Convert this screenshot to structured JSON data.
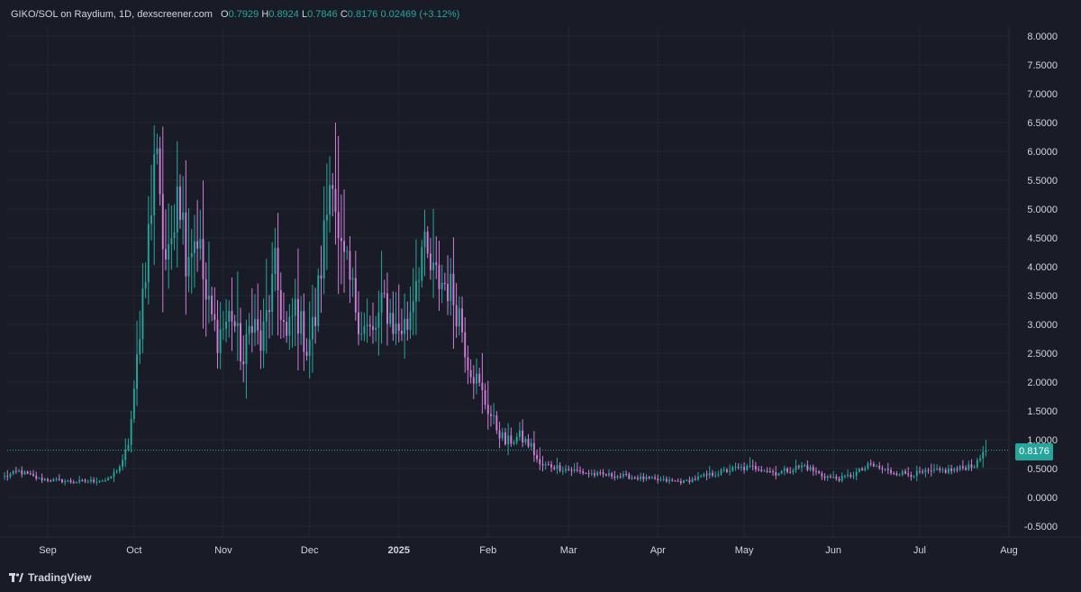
{
  "header": {
    "symbol": "GIKO/SOL on Raydium, 1D, dexscreener.com",
    "o_label": "O",
    "o_value": "0.7929",
    "h_label": "H",
    "h_value": "0.8924",
    "l_label": "L",
    "l_value": "0.7846",
    "c_label": "C",
    "c_value": "0.8176",
    "change": "0.02469 (+3.12%)"
  },
  "brand": {
    "name": "TradingView"
  },
  "colors": {
    "up": "#26a69a",
    "down": "#d07cd8",
    "background": "#191c27",
    "grid": "#242733"
  },
  "chart_data": {
    "type": "candlestick",
    "ylim": [
      -0.75,
      8.25
    ],
    "y_ticks": [
      "8.0000",
      "7.5000",
      "7.0000",
      "6.5000",
      "6.0000",
      "5.5000",
      "5.0000",
      "4.5000",
      "4.0000",
      "3.5000",
      "3.0000",
      "2.5000",
      "2.0000",
      "1.5000",
      "1.0000",
      "0.5000",
      "0.0000",
      "-0.5000"
    ],
    "y_tick_values": [
      8,
      7.5,
      7,
      6.5,
      6,
      5.5,
      5,
      4.5,
      4,
      3.5,
      3,
      2.5,
      2,
      1.5,
      1,
      0.5,
      0,
      -0.5
    ],
    "x_ticks": [
      {
        "label": "Sep",
        "date": "2024-09-01",
        "bold": false
      },
      {
        "label": "Oct",
        "date": "2024-10-01",
        "bold": false
      },
      {
        "label": "Nov",
        "date": "2024-11-01",
        "bold": false
      },
      {
        "label": "Dec",
        "date": "2024-12-01",
        "bold": false
      },
      {
        "label": "2025",
        "date": "2025-01-01",
        "bold": true
      },
      {
        "label": "Feb",
        "date": "2025-02-01",
        "bold": false
      },
      {
        "label": "Mar",
        "date": "2025-03-01",
        "bold": false
      },
      {
        "label": "Apr",
        "date": "2025-04-01",
        "bold": false
      },
      {
        "label": "May",
        "date": "2025-05-01",
        "bold": false
      },
      {
        "label": "Jun",
        "date": "2025-06-01",
        "bold": false
      },
      {
        "label": "Jul",
        "date": "2025-07-01",
        "bold": false
      },
      {
        "label": "Aug",
        "date": "2025-08-01",
        "bold": false
      }
    ],
    "start_date": "2024-08-17",
    "last_price": "0.8176",
    "last_value": 0.8176,
    "close_path": [
      [
        "2024-08-17",
        0.36
      ],
      [
        "2024-08-22",
        0.45
      ],
      [
        "2024-08-29",
        0.32
      ],
      [
        "2024-09-10",
        0.27
      ],
      [
        "2024-09-22",
        0.3
      ],
      [
        "2024-09-27",
        0.6
      ],
      [
        "2024-09-29",
        0.95
      ],
      [
        "2024-10-01",
        1.75
      ],
      [
        "2024-10-03",
        3.0
      ],
      [
        "2024-10-05",
        4.1
      ],
      [
        "2024-10-07",
        5.0
      ],
      [
        "2024-10-09",
        6.4
      ],
      [
        "2024-10-11",
        4.4
      ],
      [
        "2024-10-13",
        4.0
      ],
      [
        "2024-10-16",
        5.7
      ],
      [
        "2024-10-19",
        4.3
      ],
      [
        "2024-10-23",
        4.6
      ],
      [
        "2024-10-26",
        3.4
      ],
      [
        "2024-10-30",
        2.8
      ],
      [
        "2024-11-04",
        3.2
      ],
      [
        "2024-11-08",
        2.3
      ],
      [
        "2024-11-11",
        3.2
      ],
      [
        "2024-11-14",
        2.6
      ],
      [
        "2024-11-19",
        3.9
      ],
      [
        "2024-11-23",
        2.7
      ],
      [
        "2024-11-26",
        3.3
      ],
      [
        "2024-11-30",
        2.6
      ],
      [
        "2024-12-03",
        3.1
      ],
      [
        "2024-12-06",
        4.5
      ],
      [
        "2024-12-09",
        6.0
      ],
      [
        "2024-12-11",
        4.3
      ],
      [
        "2024-12-15",
        3.7
      ],
      [
        "2024-12-19",
        3.0
      ],
      [
        "2024-12-23",
        2.8
      ],
      [
        "2024-12-27",
        3.4
      ],
      [
        "2024-12-31",
        2.9
      ],
      [
        "2025-01-04",
        3.0
      ],
      [
        "2025-01-07",
        3.9
      ],
      [
        "2025-01-09",
        4.3
      ],
      [
        "2025-01-13",
        3.8
      ],
      [
        "2025-01-18",
        3.7
      ],
      [
        "2025-01-22",
        3.2
      ],
      [
        "2025-01-25",
        2.4
      ],
      [
        "2025-01-29",
        1.9
      ],
      [
        "2025-02-03",
        1.3
      ],
      [
        "2025-02-07",
        0.95
      ],
      [
        "2025-02-12",
        1.05
      ],
      [
        "2025-02-16",
        0.88
      ],
      [
        "2025-02-19",
        0.55
      ],
      [
        "2025-02-23",
        0.55
      ],
      [
        "2025-03-01",
        0.48
      ],
      [
        "2025-03-10",
        0.4
      ],
      [
        "2025-03-20",
        0.37
      ],
      [
        "2025-04-01",
        0.3
      ],
      [
        "2025-04-10",
        0.27
      ],
      [
        "2025-04-18",
        0.38
      ],
      [
        "2025-04-28",
        0.5
      ],
      [
        "2025-05-06",
        0.52
      ],
      [
        "2025-05-12",
        0.42
      ],
      [
        "2025-05-22",
        0.55
      ],
      [
        "2025-05-28",
        0.38
      ],
      [
        "2025-06-03",
        0.32
      ],
      [
        "2025-06-08",
        0.4
      ],
      [
        "2025-06-14",
        0.56
      ],
      [
        "2025-06-20",
        0.45
      ],
      [
        "2025-06-28",
        0.4
      ],
      [
        "2025-07-06",
        0.45
      ],
      [
        "2025-07-14",
        0.48
      ],
      [
        "2025-07-18",
        0.55
      ],
      [
        "2025-07-21",
        0.58
      ],
      [
        "2025-07-23",
        0.8
      ],
      [
        "2025-07-24",
        0.8176
      ]
    ]
  }
}
